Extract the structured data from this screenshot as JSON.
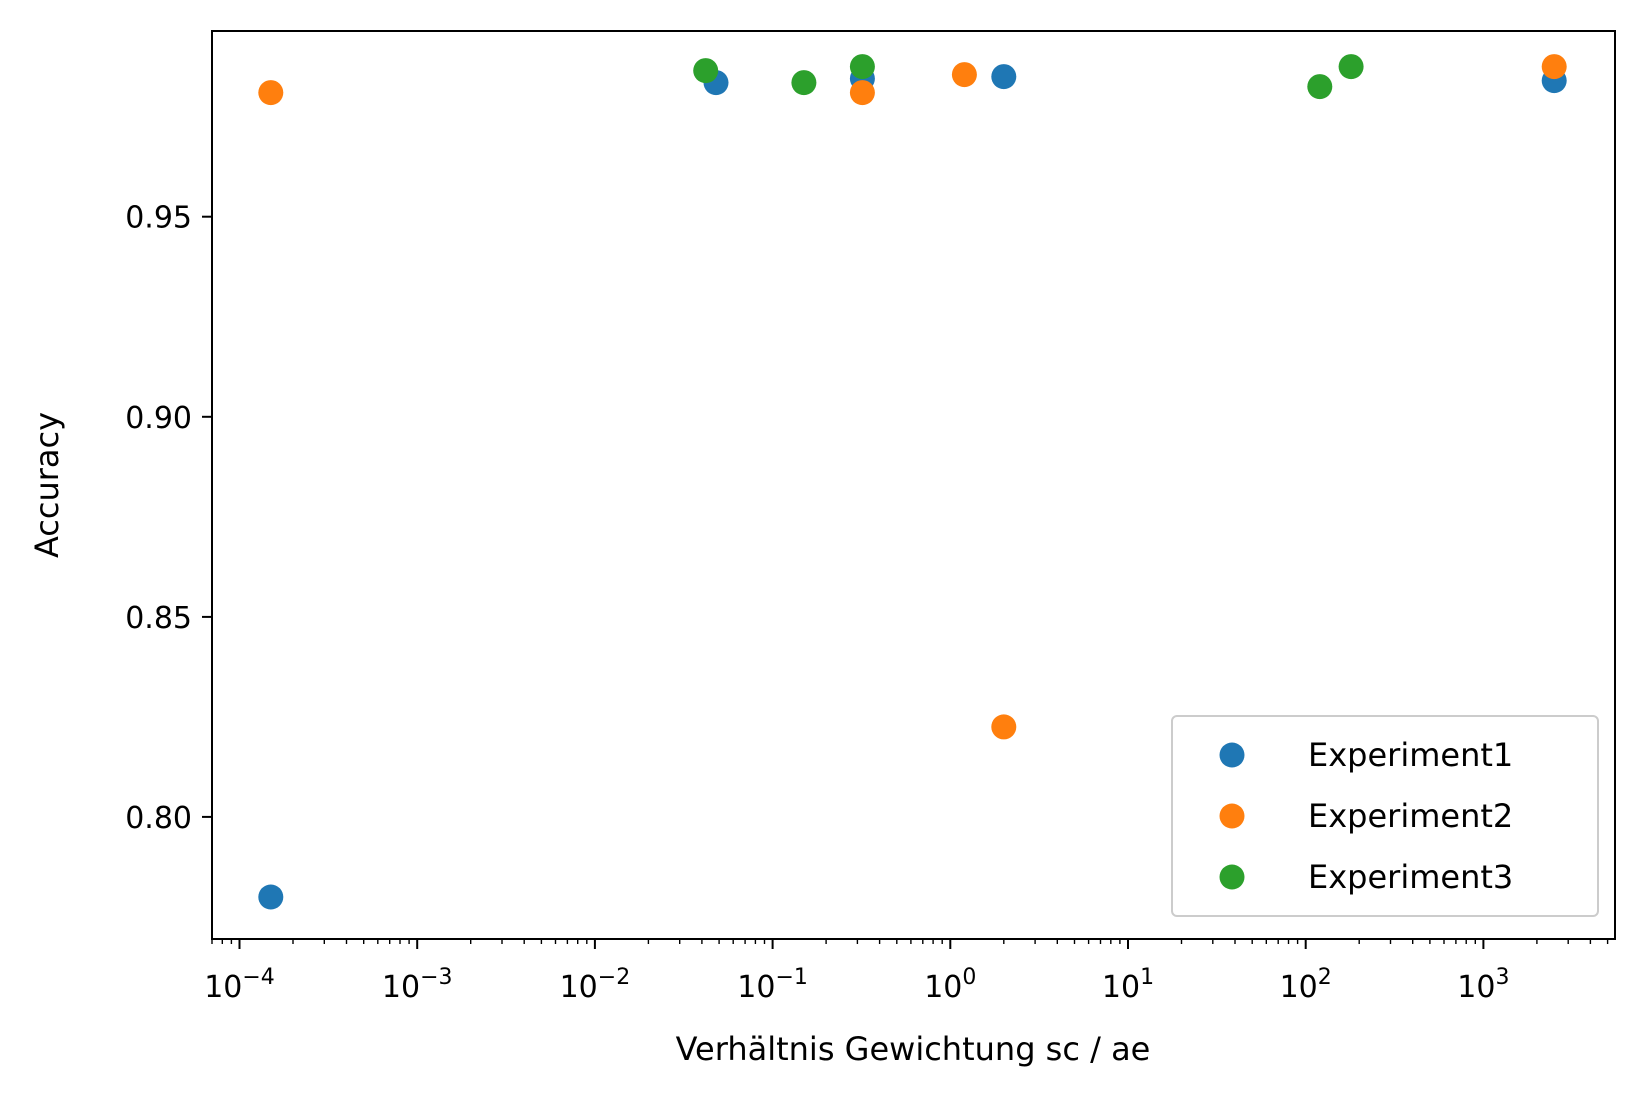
{
  "chart_data": {
    "type": "scatter",
    "xlabel": "Verhältnis Gewichtung sc / ae",
    "ylabel": "Accuracy",
    "xscale": "log",
    "xlim": [
      7e-05,
      5500
    ],
    "ylim": [
      0.7695,
      0.9964
    ],
    "xticks": [
      {
        "value": 0.0001,
        "base": "10",
        "exp": "−4"
      },
      {
        "value": 0.001,
        "base": "10",
        "exp": "−3"
      },
      {
        "value": 0.01,
        "base": "10",
        "exp": "−2"
      },
      {
        "value": 0.1,
        "base": "10",
        "exp": "−1"
      },
      {
        "value": 1,
        "base": "10",
        "exp": "0"
      },
      {
        "value": 10,
        "base": "10",
        "exp": "1"
      },
      {
        "value": 100,
        "base": "10",
        "exp": "2"
      },
      {
        "value": 1000,
        "base": "10",
        "exp": "3"
      }
    ],
    "yticks": [
      {
        "value": 0.8,
        "label": "0.80"
      },
      {
        "value": 0.85,
        "label": "0.85"
      },
      {
        "value": 0.9,
        "label": "0.90"
      },
      {
        "value": 0.95,
        "label": "0.95"
      }
    ],
    "grid": false,
    "legend_position": "lower-right",
    "series": [
      {
        "name": "Experiment1",
        "color": "#1f77b4",
        "points": [
          {
            "x": 0.00015,
            "y": 0.78
          },
          {
            "x": 0.048,
            "y": 0.9835
          },
          {
            "x": 0.32,
            "y": 0.9845
          },
          {
            "x": 2.0,
            "y": 0.985
          },
          {
            "x": 2500,
            "y": 0.984
          }
        ]
      },
      {
        "name": "Experiment2",
        "color": "#ff7f0e",
        "points": [
          {
            "x": 0.00015,
            "y": 0.981
          },
          {
            "x": 0.32,
            "y": 0.981
          },
          {
            "x": 1.2,
            "y": 0.9855
          },
          {
            "x": 2.0,
            "y": 0.8225
          },
          {
            "x": 2500,
            "y": 0.9875
          }
        ]
      },
      {
        "name": "Experiment3",
        "color": "#2ca02c",
        "points": [
          {
            "x": 0.042,
            "y": 0.9865
          },
          {
            "x": 0.15,
            "y": 0.9835
          },
          {
            "x": 0.32,
            "y": 0.9875
          },
          {
            "x": 120,
            "y": 0.9825
          },
          {
            "x": 180,
            "y": 0.9875
          }
        ]
      }
    ]
  }
}
